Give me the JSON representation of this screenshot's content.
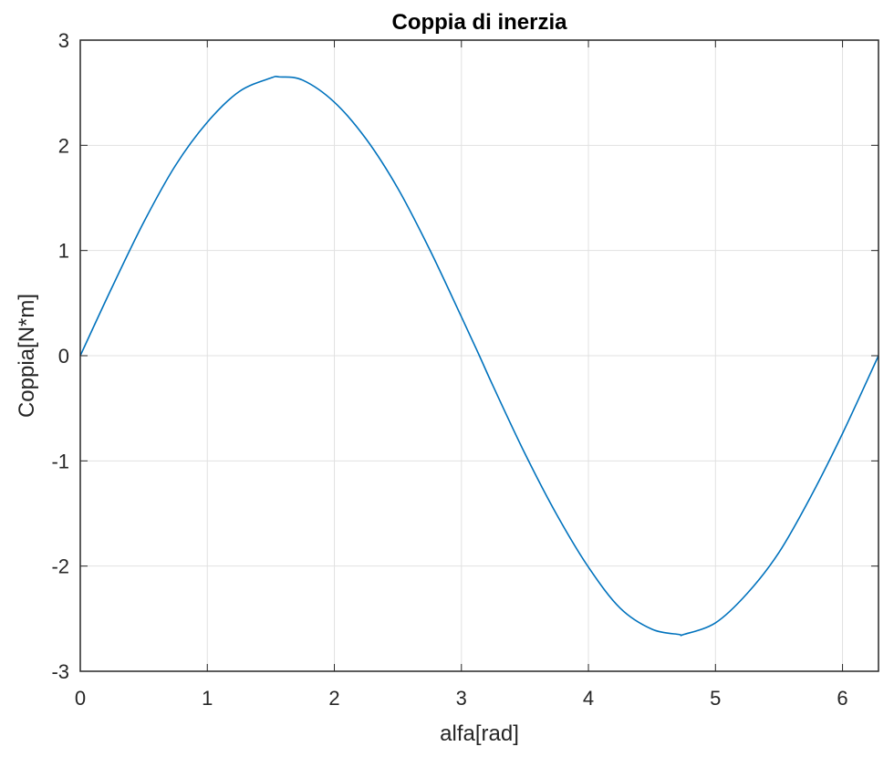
{
  "chart_data": {
    "type": "line",
    "title": "Coppia di inerzia",
    "xlabel": "alfa[rad]",
    "ylabel": "Coppia[N*m]",
    "xlim": [
      0,
      6.2832
    ],
    "ylim": [
      -3,
      3
    ],
    "xticks": [
      0,
      1,
      2,
      3,
      4,
      5,
      6
    ],
    "yticks": [
      -3,
      -2,
      -1,
      0,
      1,
      2,
      3
    ],
    "xtick_labels": [
      "0",
      "1",
      "2",
      "3",
      "4",
      "5",
      "6"
    ],
    "ytick_labels": [
      "-3",
      "-2",
      "-1",
      "0",
      "1",
      "2",
      "3"
    ],
    "grid": true,
    "series": [
      {
        "color": "#0072BD",
        "x": [
          0,
          0.25,
          0.5,
          0.75,
          1.0,
          1.25,
          1.5,
          1.5708,
          1.75,
          2.0,
          2.25,
          2.5,
          2.75,
          3.0,
          3.1416,
          3.25,
          3.5,
          3.75,
          4.0,
          4.25,
          4.5,
          4.7124,
          4.75,
          5.0,
          5.25,
          5.5,
          5.75,
          6.0,
          6.2832
        ],
        "y": [
          0,
          0.65,
          1.27,
          1.81,
          2.22,
          2.51,
          2.64,
          2.65,
          2.62,
          2.41,
          2.06,
          1.59,
          1.01,
          0.37,
          0,
          -0.29,
          -0.93,
          -1.51,
          -2.01,
          -2.4,
          -2.6,
          -2.65,
          -2.65,
          -2.54,
          -2.26,
          -1.87,
          -1.34,
          -0.74,
          0
        ]
      }
    ]
  }
}
